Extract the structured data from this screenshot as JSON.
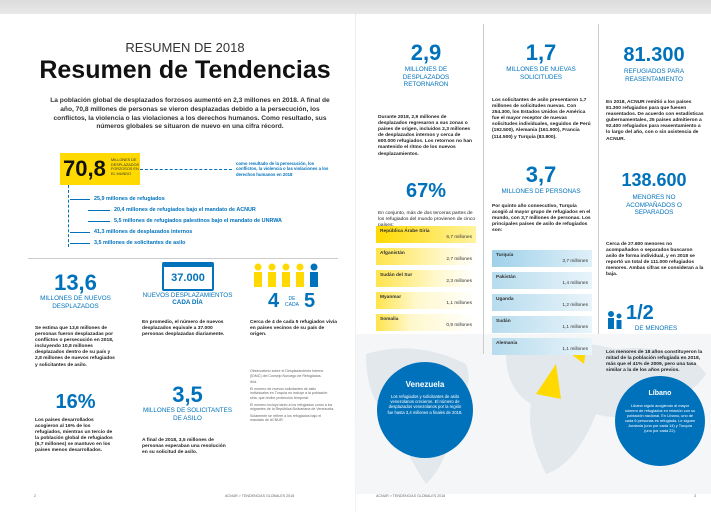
{
  "left_page": {
    "kicker": "RESUMEN DE 2018",
    "title": "Resumen de Tendencias",
    "intro": "La población global de desplazados forzosos aumentó en 2,3 millones en 2018. A final de año, 70,8 millones de personas se vieron desplazadas debido a la persecución, los conflictos, la violencia o las violaciones a los derechos humanos. Como resultado, sus números globales se situaron de nuevo en una cifra récord.",
    "headline": {
      "number": "70,8",
      "label": "MILLONES DE DESPLAZADOS FORZOSOS EN EL MUNDO",
      "note": "como resultado de la persecución, los conflictos, la violencia o las violaciones a los derechos humanos en 2018"
    },
    "breakdown": [
      "25,9 millones de refugiados",
      "20,4 millones de refugiados bajo el mandato de ACNUR",
      "5,5 millones de refugiados palestinos bajo el mandato de UNRWA",
      "41,3 millones de desplazados internos",
      "3,5 millones de solicitantes de asilo"
    ],
    "new_displaced": {
      "number": "13,6",
      "label": "MILLONES DE NUEVOS DESPLAZADOS",
      "text": "Se estima que 13,6 millones de personas fueron desplazadas por conflictos o persecución en 2018, incluyendo 10,8 millones desplazados dentro de su país y 2,8 millones de nuevos refugiados y solicitantes de asilo."
    },
    "developed": {
      "number": "16%",
      "text": "Los países desarrollados acogieron al 16% de los refugiados, mientras un tercio de la población global de refugiados (6,7 millones) se mantuvo en los países menos desarrollados."
    },
    "daily": {
      "number": "37.000",
      "label": "NUEVOS DESPLAZAMIENTOS",
      "label_bold": "CADA DÍA",
      "text": "En promedio, el número de nuevos desplazados equivale a 37.000 personas desplazadas diariamente."
    },
    "asylum": {
      "number": "3,5",
      "label": "MILLONES DE SOLICITANTES DE ASILO",
      "text": "A final de 2018, 3,5 millones de personas esperaban una resolución en su solicitud de asilo."
    },
    "neighbours": {
      "number_a": "4",
      "connector": "DE CADA",
      "number_b": "5",
      "text": "Cerca de 4 de cada 5 refugiados vivía en países vecinos de su país de origen."
    },
    "footnotes": [
      "Observatorio sobre el Desplazamiento Interno (IDMC) del Consejo Noruego de Refugiados.",
      "Ibíd.",
      "El número de nuevos solicitantes de asilo individuales en Turquía no incluye a la población siria, que recibe protección temporal.",
      "El número incluye tanto a los refugiados como a los migrantes de la República Bolivariana de Venezuela.",
      "Solamente se refiere a los refugiados bajo el mandato de ACNUR."
    ],
    "page_number": "2",
    "footer": "ACNUR > TENDENCIAS GLOBALES 2018"
  },
  "right_page": {
    "returned": {
      "number": "2,9",
      "label": "MILLONES DE DESPLAZADOS RETORNARON",
      "text": "Durante 2018, 2,9 millones de desplazados regresaron a sus zonas o países de origen, incluidos 2,3 millones de desplazados internos y cerca de 600.000 refugiados. Los retornos no han mantenido el ritmo de los nuevos desplazamientos."
    },
    "origin": {
      "number": "67%",
      "text": "En conjunto, más de dos terceras partes de los refugiados del mundo provienen de cinco países:",
      "rows": [
        [
          "República Árabe Siria",
          "6,7 millones"
        ],
        [
          "Afganistán",
          "2,7 millones"
        ],
        [
          "Sudán del Sur",
          "2,3 millones"
        ],
        [
          "Myanmar",
          "1,1 millones"
        ],
        [
          "Somalia",
          "0,9 millones"
        ]
      ]
    },
    "claims": {
      "number": "1,7",
      "label": "MILLONES DE NUEVAS SOLICITUDES",
      "text": "Los solicitantes de asilo presentaron 1,7 millones de solicitudes nuevas. Con 254.300, los Estados Unidos de América fue el mayor receptor de nuevas solicitudes individuales, seguidos de Perú (192.500), Alemania (161.900), Francia (114.500) y Turquía (83.800)."
    },
    "hosts": {
      "number": "3,7",
      "label": "MILLONES DE PERSONAS",
      "text": "Por quinto año consecutivo, Turquía acogió al mayor grupo de refugiados en el mundo, con 3,7 millones de personas. Los principales países de asilo de refugiados son:",
      "rows": [
        [
          "Turquía",
          "3,7 millones"
        ],
        [
          "Pakistán",
          "1,4 millones"
        ],
        [
          "Uganda",
          "1,2 millones"
        ],
        [
          "Sudán",
          "1,1 millones"
        ],
        [
          "Alemania",
          "1,1 millones"
        ]
      ]
    },
    "resettlement": {
      "number": "81.300",
      "label": "REFUGIADOS PARA REASENTAMIENTO",
      "text": "En 2018, ACNUR remitió a los países 81.300 refugiados para que fuesen reasentados. De acuerdo con estadísticas gubernamentales, 25 países admitieron a 92.400 refugiados para reasentamiento a lo largo del año, con o sin asistencia de ACNUR."
    },
    "minors": {
      "number": "138.600",
      "label": "MENORES NO ACOMPAÑADOS O SEPARADOS",
      "text": "Cerca de 27.600 menores no acompañados o separados buscaron asilo de forma individual, y en 2018 se reportó un total de 111.000 refugiados menores. Ambas cifras se consideran a la baja."
    },
    "half": {
      "number": "1/2",
      "label": "DE MENORES",
      "text": "Los menores de 18 años constituyeron la mitad de la población refugiada en 2018, más que el 41% de 2009, pero una tasa similar a la de los años previos."
    },
    "venezuela": {
      "title": "Venezuela",
      "text": "Los refugiados y solicitantes de asilo venezolanos crecieron. El número de desplazados venezolanos por la región fue hasta 3,4 millones a finales de 2018."
    },
    "lebanon": {
      "title": "Líbano",
      "text": "Líbano siguió acogiendo al mayor número de refugiados en relación con su población nacional. En Líbano, uno de cada 6 personas es refugiada. Le siguen Jordania (uno por cada 14) y Turquía (uno por cada 22)."
    },
    "footer": "ACNUR > TENDENCIAS GLOBALES 2018",
    "page_number": "3"
  }
}
